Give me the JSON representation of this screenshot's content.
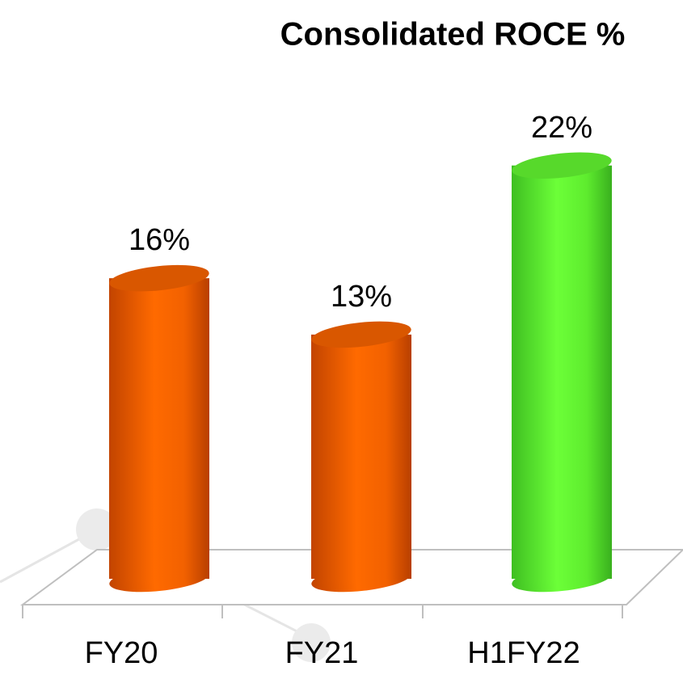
{
  "chart_data": {
    "type": "bar3d",
    "title": "Consolidated ROCE %",
    "categories": [
      "FY20",
      "FY21",
      "H1FY22"
    ],
    "values": [
      16,
      13,
      22
    ],
    "value_labels": [
      "16%",
      "13%",
      "22%"
    ],
    "colors": [
      "#ff6600",
      "#ff6600",
      "#66ff33"
    ],
    "ylim": [
      0,
      25
    ]
  }
}
